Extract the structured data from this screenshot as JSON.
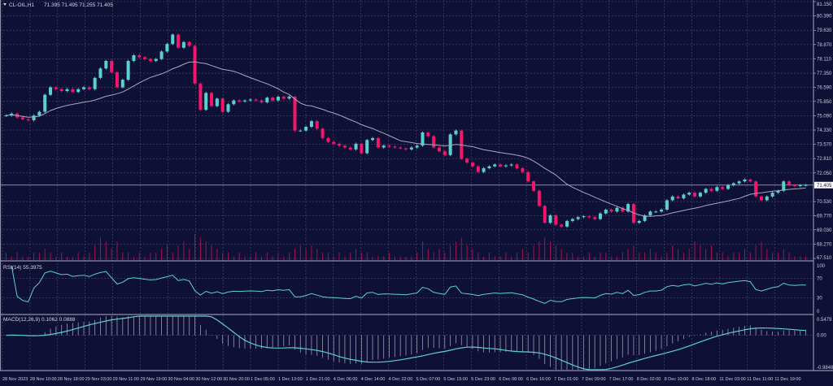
{
  "header": {
    "symbol_label": "CL-OIL,H1",
    "ohlc_label": "71.395 71.495 71.255 71.405",
    "menu_icon": "triangle-down-icon"
  },
  "colors": {
    "background": "#0f1035",
    "grid": "#4b4e72",
    "bull": "#5ad1cf",
    "bear": "#f5156a",
    "moving_average": "#a9a9b8",
    "volume": "#a3124f",
    "indicator_line": "#5ad1cf",
    "macd_histogram": "#9a9aae",
    "text": "#c9cad8"
  },
  "chart_data": [
    {
      "type": "candlestick",
      "panel": "price",
      "current_price": "71.405",
      "price_axis_labels": [
        "81.150",
        "80.390",
        "79.630",
        "78.870",
        "78.110",
        "77.350",
        "76.590",
        "75.850",
        "75.090",
        "74.330",
        "73.570",
        "72.810",
        "72.050",
        "70.530",
        "69.770",
        "69.030",
        "68.270",
        "67.510"
      ],
      "ylim": [
        67.51,
        81.15
      ],
      "grid": true,
      "overlay": "moving average (gray line)",
      "time_axis_labels": [
        "28 Nov 2023",
        "28 Nov 10:00",
        "28 Nov 18:00",
        "29 Nov 03:00",
        "29 Nov 11:00",
        "29 Nov 19:00",
        "30 Nov 04:00",
        "30 Nov 12:00",
        "30 Nov 20:00",
        "1 Dec 05:00",
        "1 Dec 13:00",
        "1 Dec 21:00",
        "4 Dec 06:00",
        "4 Dec 14:00",
        "4 Dec 22:00",
        "5 Dec 07:00",
        "5 Dec 15:00",
        "5 Dec 23:00",
        "6 Dec 08:00",
        "6 Dec 16:00",
        "7 Dec 01:00",
        "7 Dec 09:00",
        "7 Dec 17:00",
        "8 Dec 02:00",
        "8 Dec 10:00",
        "8 Dec 18:00",
        "11 Dec 03:00",
        "11 Dec 11:00",
        "11 Dec 19:00"
      ],
      "close": [
        75.1,
        75.2,
        75.0,
        74.9,
        74.85,
        75.1,
        75.3,
        76.2,
        76.6,
        76.5,
        76.4,
        76.5,
        76.35,
        76.5,
        76.6,
        76.5,
        77.1,
        77.6,
        78.0,
        77.4,
        76.6,
        77.0,
        78.0,
        78.3,
        78.2,
        78.1,
        78.0,
        78.1,
        78.5,
        78.9,
        79.4,
        78.7,
        79.0,
        78.8,
        76.8,
        75.4,
        76.3,
        75.6,
        76.0,
        75.3,
        75.7,
        75.9,
        75.85,
        75.9,
        75.95,
        75.9,
        75.8,
        76.05,
        75.9,
        76.1,
        76.0,
        76.1,
        74.3,
        74.3,
        74.5,
        74.8,
        74.4,
        73.9,
        73.7,
        73.6,
        73.5,
        73.4,
        73.3,
        73.6,
        73.1,
        73.8,
        73.9,
        73.4,
        73.5,
        73.45,
        73.4,
        73.35,
        73.3,
        73.4,
        73.5,
        74.2,
        74.0,
        73.4,
        73.2,
        73.0,
        74.1,
        74.3,
        72.8,
        72.6,
        72.4,
        72.1,
        72.3,
        72.4,
        72.5,
        72.4,
        72.45,
        72.5,
        72.3,
        72.1,
        71.6,
        71.1,
        70.3,
        69.4,
        69.8,
        69.3,
        69.2,
        69.5,
        69.6,
        69.7,
        69.75,
        69.7,
        69.6,
        69.9,
        70.1,
        70.0,
        70.2,
        70.0,
        70.4,
        69.4,
        69.5,
        69.8,
        70.0,
        70.0,
        70.1,
        70.6,
        70.8,
        70.7,
        70.9,
        71.0,
        70.8,
        71.0,
        71.2,
        71.1,
        71.3,
        71.2,
        71.4,
        71.5,
        71.6,
        71.7,
        71.6,
        70.8,
        70.6,
        70.8,
        71.0,
        71.1,
        71.6,
        71.4,
        71.35,
        71.4,
        71.405
      ],
      "volume_relative": [
        2,
        1,
        2,
        1,
        1,
        2,
        2,
        3,
        2,
        1,
        2,
        1,
        1,
        2,
        1,
        2,
        4,
        6,
        5,
        3,
        5,
        2,
        2,
        1,
        2,
        1,
        2,
        2,
        3,
        4,
        2,
        4,
        5,
        3,
        7,
        6,
        5,
        4,
        3,
        2,
        2,
        1,
        2,
        1,
        1,
        2,
        1,
        2,
        1,
        2,
        1,
        2,
        3,
        4,
        3,
        4,
        3,
        2,
        2,
        1,
        2,
        1,
        2,
        3,
        2,
        2,
        1,
        1,
        1,
        2,
        1,
        1,
        1,
        1,
        2,
        5,
        3,
        2,
        3,
        2,
        4,
        5,
        6,
        4,
        3,
        2,
        1,
        2,
        1,
        1,
        2,
        1,
        2,
        3,
        2,
        4,
        5,
        6,
        5,
        4,
        3,
        2,
        2,
        1,
        1,
        2,
        1,
        2,
        2,
        1,
        1,
        2,
        3,
        4,
        2,
        2,
        3,
        2,
        1,
        2,
        4,
        3,
        2,
        3,
        5,
        4,
        3,
        4,
        2,
        2,
        1,
        2,
        2,
        3,
        2,
        4,
        5,
        3,
        2,
        2,
        3,
        2,
        1,
        1,
        1
      ]
    },
    {
      "type": "line",
      "panel": "rsi",
      "title": "RSI(14) 55.3975",
      "axis_labels": [
        "100",
        "70",
        "30",
        "0"
      ],
      "ylim": [
        0,
        100
      ],
      "levels": [
        70,
        30
      ]
    },
    {
      "type": "bar+line",
      "panel": "macd",
      "title": "MACD(12,26,9) 0.1062 0.0888",
      "axis_labels": [
        "0.5479",
        "0.00",
        "-0.9848"
      ],
      "ylim": [
        -0.9848,
        0.5479
      ]
    }
  ]
}
